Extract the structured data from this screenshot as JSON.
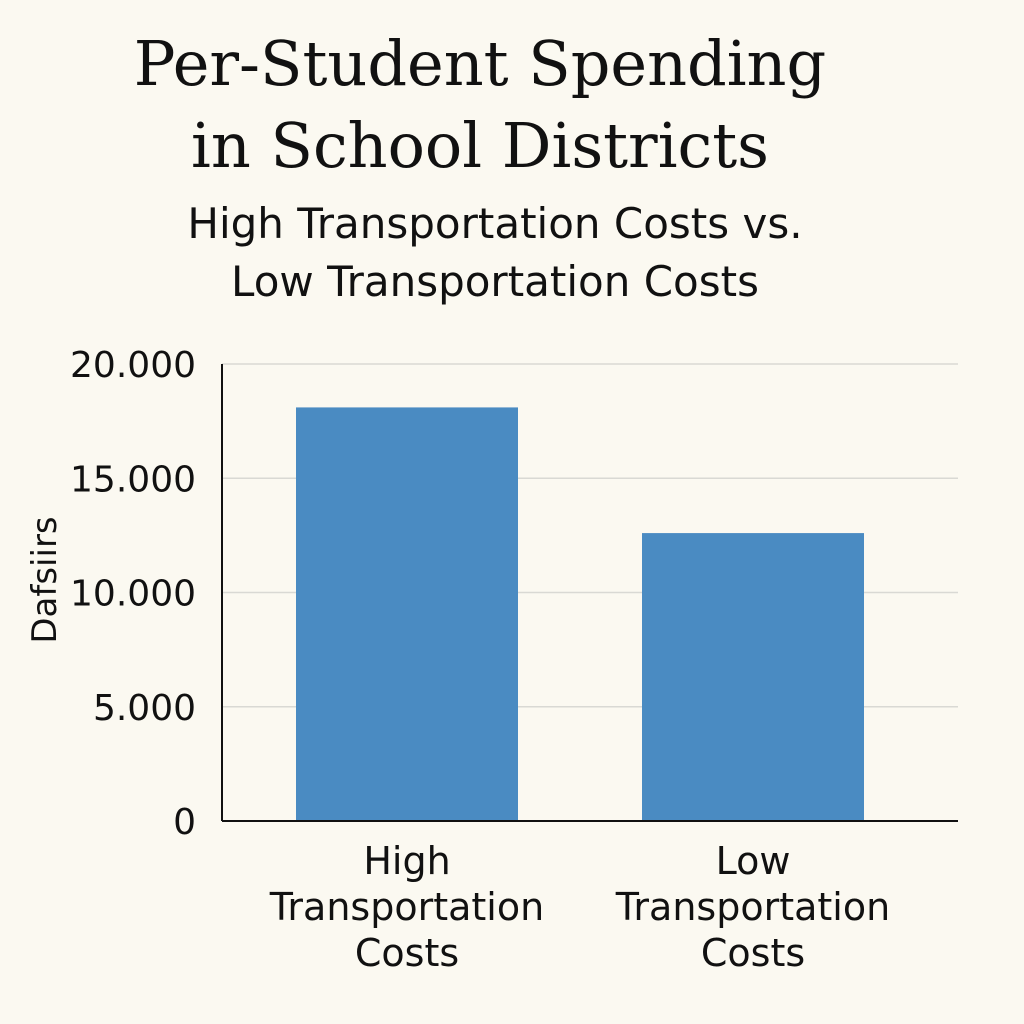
{
  "chart_data": {
    "type": "bar",
    "title_lines": [
      "Per-Student Spending",
      "in School Districts"
    ],
    "subtitle_lines": [
      "High Transportation Costs vs.",
      "Low Transportation Costs"
    ],
    "ylabel": "Dafsiirs",
    "xlabel": "",
    "categories": [
      [
        "High",
        "Transportation",
        "Costs"
      ],
      [
        "Low",
        "Transportation",
        "Costs"
      ]
    ],
    "values": [
      18100,
      12600
    ],
    "ylim": [
      0,
      20000
    ],
    "yticks": [
      0,
      5000,
      10000,
      15000,
      20000
    ],
    "ytick_labels": [
      "0",
      "5.000",
      "10.000",
      "15.000",
      "20.000"
    ],
    "grid": true,
    "bar_color": "#4a8bc2",
    "grid_color": "#d9d9d4",
    "axis_color": "#111111"
  }
}
